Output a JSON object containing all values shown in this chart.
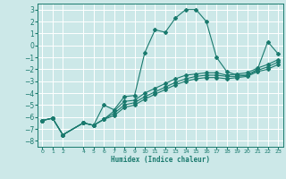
{
  "xlabel": "Humidex (Indice chaleur)",
  "bg_color": "#cce8e8",
  "grid_color": "#ffffff",
  "line_color": "#1a7a6e",
  "xlim": [
    -0.5,
    23.5
  ],
  "ylim": [
    -8.5,
    3.5
  ],
  "yticks": [
    -8,
    -7,
    -6,
    -5,
    -4,
    -3,
    -2,
    -1,
    0,
    1,
    2,
    3
  ],
  "xticks": [
    0,
    1,
    2,
    4,
    5,
    6,
    7,
    8,
    9,
    10,
    11,
    12,
    13,
    14,
    15,
    16,
    17,
    18,
    19,
    20,
    21,
    22,
    23
  ],
  "lines": [
    {
      "x": [
        0,
        1,
        2,
        4,
        5,
        6,
        7,
        8,
        9,
        10,
        11,
        12,
        13,
        14,
        15,
        16,
        17,
        18,
        19,
        20,
        21,
        22,
        23
      ],
      "y": [
        -6.3,
        -6.1,
        -7.5,
        -6.5,
        -6.7,
        -5.0,
        -5.4,
        -4.3,
        -4.2,
        -0.6,
        1.3,
        1.1,
        2.3,
        3.0,
        3.0,
        2.0,
        -1.0,
        -2.2,
        -2.5,
        -2.5,
        -2.0,
        0.3,
        -0.7
      ]
    },
    {
      "x": [
        0,
        1,
        2,
        4,
        5,
        6,
        7,
        8,
        9,
        10,
        11,
        12,
        13,
        14,
        15,
        16,
        17,
        18,
        19,
        20,
        21,
        22,
        23
      ],
      "y": [
        -6.3,
        -6.1,
        -7.5,
        -6.5,
        -6.7,
        -6.2,
        -5.5,
        -4.7,
        -4.6,
        -4.0,
        -3.6,
        -3.2,
        -2.8,
        -2.5,
        -2.4,
        -2.3,
        -2.3,
        -2.5,
        -2.4,
        -2.3,
        -1.9,
        -1.6,
        -1.2
      ]
    },
    {
      "x": [
        0,
        1,
        2,
        4,
        5,
        6,
        7,
        8,
        9,
        10,
        11,
        12,
        13,
        14,
        15,
        16,
        17,
        18,
        19,
        20,
        21,
        22,
        23
      ],
      "y": [
        -6.3,
        -6.1,
        -7.5,
        -6.5,
        -6.7,
        -6.2,
        -5.7,
        -5.0,
        -4.8,
        -4.3,
        -3.9,
        -3.5,
        -3.1,
        -2.8,
        -2.6,
        -2.5,
        -2.5,
        -2.6,
        -2.6,
        -2.5,
        -2.1,
        -1.8,
        -1.4
      ]
    },
    {
      "x": [
        0,
        1,
        2,
        4,
        5,
        6,
        7,
        8,
        9,
        10,
        11,
        12,
        13,
        14,
        15,
        16,
        17,
        18,
        19,
        20,
        21,
        22,
        23
      ],
      "y": [
        -6.3,
        -6.1,
        -7.5,
        -6.5,
        -6.7,
        -6.2,
        -5.9,
        -5.2,
        -5.0,
        -4.5,
        -4.1,
        -3.7,
        -3.3,
        -3.0,
        -2.8,
        -2.7,
        -2.7,
        -2.8,
        -2.7,
        -2.6,
        -2.2,
        -2.0,
        -1.6
      ]
    }
  ]
}
